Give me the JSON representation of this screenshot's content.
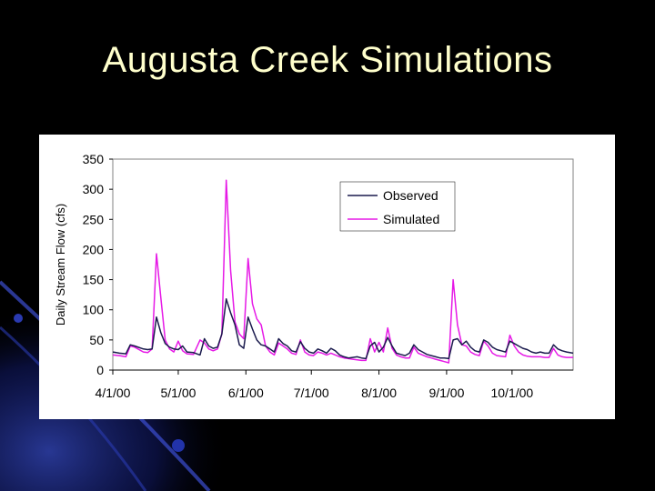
{
  "slide": {
    "title": "Augusta Creek Simulations"
  },
  "colors": {
    "background": "#000000",
    "title": "#ffffcc",
    "observed": "#1a1a4d",
    "simulated": "#e619e6",
    "plot_border": "#808080"
  },
  "chart_data": {
    "type": "line",
    "title": "",
    "xlabel": "",
    "ylabel": "Daily Stream Flow (cfs)",
    "ylim": [
      0,
      350
    ],
    "yticks": [
      0,
      50,
      100,
      150,
      200,
      250,
      300,
      350
    ],
    "xlim": [
      0,
      211
    ],
    "xticks": [
      {
        "day": 0,
        "label": "4/1/00"
      },
      {
        "day": 30,
        "label": "5/1/00"
      },
      {
        "day": 61,
        "label": "6/1/00"
      },
      {
        "day": 91,
        "label": "7/1/00"
      },
      {
        "day": 122,
        "label": "8/1/00"
      },
      {
        "day": 153,
        "label": "9/1/00"
      },
      {
        "day": 183,
        "label": "10/1/00"
      }
    ],
    "grid": false,
    "legend_position": "top-right",
    "series": [
      {
        "name": "Observed",
        "points": [
          [
            0,
            30
          ],
          [
            3,
            28
          ],
          [
            6,
            27
          ],
          [
            8,
            42
          ],
          [
            10,
            40
          ],
          [
            14,
            35
          ],
          [
            16,
            34
          ],
          [
            18,
            35
          ],
          [
            20,
            88
          ],
          [
            22,
            62
          ],
          [
            24,
            44
          ],
          [
            26,
            38
          ],
          [
            28,
            35
          ],
          [
            30,
            34
          ],
          [
            32,
            40
          ],
          [
            34,
            30
          ],
          [
            37,
            29
          ],
          [
            40,
            25
          ],
          [
            42,
            52
          ],
          [
            44,
            40
          ],
          [
            46,
            36
          ],
          [
            48,
            38
          ],
          [
            50,
            60
          ],
          [
            52,
            118
          ],
          [
            54,
            95
          ],
          [
            56,
            75
          ],
          [
            58,
            42
          ],
          [
            60,
            36
          ],
          [
            62,
            88
          ],
          [
            64,
            68
          ],
          [
            66,
            50
          ],
          [
            68,
            42
          ],
          [
            70,
            40
          ],
          [
            72,
            35
          ],
          [
            74,
            30
          ],
          [
            76,
            52
          ],
          [
            78,
            44
          ],
          [
            80,
            40
          ],
          [
            82,
            32
          ],
          [
            84,
            30
          ],
          [
            86,
            47
          ],
          [
            88,
            36
          ],
          [
            90,
            30
          ],
          [
            92,
            28
          ],
          [
            94,
            35
          ],
          [
            96,
            32
          ],
          [
            98,
            28
          ],
          [
            100,
            36
          ],
          [
            102,
            32
          ],
          [
            104,
            25
          ],
          [
            106,
            22
          ],
          [
            108,
            20
          ],
          [
            110,
            21
          ],
          [
            112,
            22
          ],
          [
            114,
            20
          ],
          [
            116,
            19
          ],
          [
            118,
            40
          ],
          [
            120,
            46
          ],
          [
            122,
            30
          ],
          [
            124,
            38
          ],
          [
            126,
            54
          ],
          [
            128,
            40
          ],
          [
            130,
            28
          ],
          [
            132,
            26
          ],
          [
            134,
            24
          ],
          [
            136,
            28
          ],
          [
            138,
            42
          ],
          [
            140,
            34
          ],
          [
            142,
            30
          ],
          [
            144,
            26
          ],
          [
            146,
            24
          ],
          [
            148,
            22
          ],
          [
            150,
            20
          ],
          [
            152,
            20
          ],
          [
            154,
            19
          ],
          [
            156,
            50
          ],
          [
            158,
            52
          ],
          [
            160,
            42
          ],
          [
            162,
            48
          ],
          [
            164,
            38
          ],
          [
            166,
            32
          ],
          [
            168,
            30
          ],
          [
            170,
            50
          ],
          [
            172,
            46
          ],
          [
            174,
            38
          ],
          [
            176,
            34
          ],
          [
            178,
            32
          ],
          [
            180,
            30
          ],
          [
            182,
            48
          ],
          [
            184,
            44
          ],
          [
            186,
            40
          ],
          [
            188,
            36
          ],
          [
            190,
            34
          ],
          [
            192,
            30
          ],
          [
            194,
            28
          ],
          [
            196,
            30
          ],
          [
            198,
            28
          ],
          [
            200,
            28
          ],
          [
            202,
            42
          ],
          [
            204,
            35
          ],
          [
            206,
            32
          ],
          [
            208,
            30
          ],
          [
            211,
            28
          ]
        ]
      },
      {
        "name": "Simulated",
        "points": [
          [
            0,
            25
          ],
          [
            3,
            24
          ],
          [
            6,
            22
          ],
          [
            8,
            40
          ],
          [
            10,
            38
          ],
          [
            14,
            30
          ],
          [
            16,
            29
          ],
          [
            18,
            35
          ],
          [
            20,
            193
          ],
          [
            22,
            120
          ],
          [
            24,
            50
          ],
          [
            26,
            35
          ],
          [
            28,
            30
          ],
          [
            30,
            48
          ],
          [
            32,
            32
          ],
          [
            34,
            27
          ],
          [
            37,
            26
          ],
          [
            40,
            50
          ],
          [
            42,
            45
          ],
          [
            44,
            35
          ],
          [
            46,
            32
          ],
          [
            48,
            35
          ],
          [
            50,
            60
          ],
          [
            52,
            315
          ],
          [
            54,
            165
          ],
          [
            56,
            80
          ],
          [
            58,
            60
          ],
          [
            60,
            52
          ],
          [
            62,
            185
          ],
          [
            64,
            110
          ],
          [
            66,
            85
          ],
          [
            68,
            75
          ],
          [
            70,
            40
          ],
          [
            72,
            30
          ],
          [
            74,
            25
          ],
          [
            76,
            45
          ],
          [
            78,
            40
          ],
          [
            80,
            35
          ],
          [
            82,
            28
          ],
          [
            84,
            26
          ],
          [
            86,
            50
          ],
          [
            88,
            30
          ],
          [
            90,
            25
          ],
          [
            92,
            24
          ],
          [
            94,
            30
          ],
          [
            96,
            28
          ],
          [
            98,
            25
          ],
          [
            100,
            28
          ],
          [
            102,
            25
          ],
          [
            104,
            22
          ],
          [
            106,
            20
          ],
          [
            108,
            19
          ],
          [
            110,
            18
          ],
          [
            112,
            17
          ],
          [
            114,
            16
          ],
          [
            116,
            16
          ],
          [
            118,
            52
          ],
          [
            120,
            30
          ],
          [
            122,
            46
          ],
          [
            124,
            30
          ],
          [
            126,
            70
          ],
          [
            128,
            36
          ],
          [
            130,
            25
          ],
          [
            132,
            22
          ],
          [
            134,
            20
          ],
          [
            136,
            20
          ],
          [
            138,
            38
          ],
          [
            140,
            28
          ],
          [
            142,
            25
          ],
          [
            144,
            22
          ],
          [
            146,
            20
          ],
          [
            148,
            18
          ],
          [
            150,
            16
          ],
          [
            152,
            14
          ],
          [
            154,
            12
          ],
          [
            156,
            150
          ],
          [
            158,
            75
          ],
          [
            160,
            42
          ],
          [
            162,
            40
          ],
          [
            164,
            30
          ],
          [
            166,
            26
          ],
          [
            168,
            24
          ],
          [
            170,
            48
          ],
          [
            172,
            40
          ],
          [
            174,
            28
          ],
          [
            176,
            24
          ],
          [
            178,
            23
          ],
          [
            180,
            22
          ],
          [
            182,
            58
          ],
          [
            184,
            40
          ],
          [
            186,
            30
          ],
          [
            188,
            25
          ],
          [
            190,
            23
          ],
          [
            192,
            22
          ],
          [
            194,
            22
          ],
          [
            196,
            22
          ],
          [
            198,
            21
          ],
          [
            200,
            21
          ],
          [
            202,
            36
          ],
          [
            204,
            25
          ],
          [
            206,
            22
          ],
          [
            208,
            21
          ],
          [
            211,
            21
          ]
        ]
      }
    ]
  }
}
